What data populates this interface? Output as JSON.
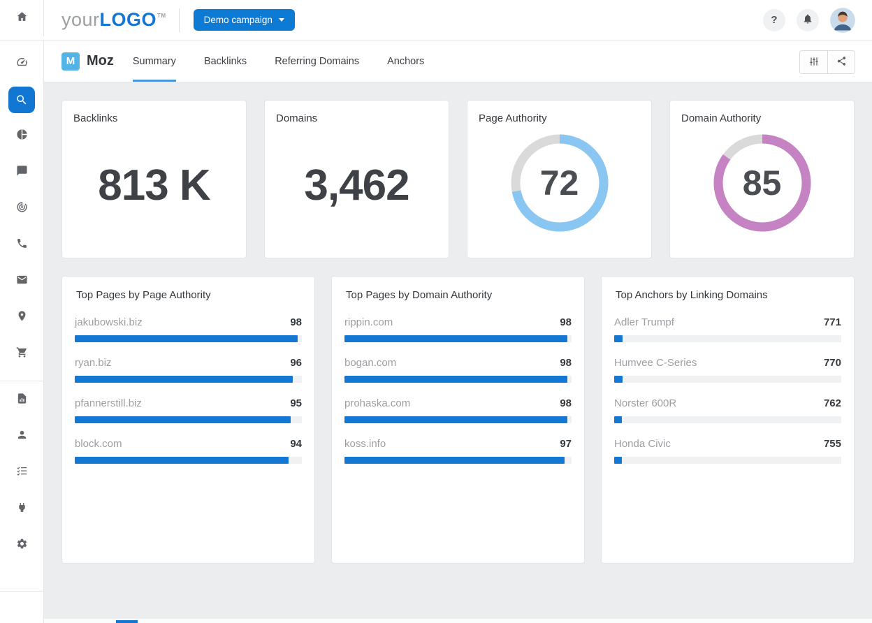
{
  "header": {
    "logo": {
      "part1": "your",
      "part2": "LOGO",
      "tm": "TM"
    },
    "campaign_button": {
      "label": "Demo campaign"
    },
    "help_label": "?"
  },
  "sidebar": {
    "active_icon": "search",
    "icons": [
      "home",
      "dashboard-gauge",
      "search",
      "pie-chart",
      "chat",
      "target",
      "phone",
      "mail",
      "location-pin",
      "shopping-cart",
      "report",
      "user",
      "checklist",
      "plug",
      "settings"
    ]
  },
  "moz": {
    "brand": "Moz",
    "brand_initial": "M",
    "tabs": [
      {
        "label": "Summary",
        "active": true
      },
      {
        "label": "Backlinks",
        "active": false
      },
      {
        "label": "Referring Domains",
        "active": false
      },
      {
        "label": "Anchors",
        "active": false
      }
    ]
  },
  "stats": [
    {
      "title": "Backlinks",
      "value": "813 K",
      "type": "number"
    },
    {
      "title": "Domains",
      "value": "3,462",
      "type": "number"
    },
    {
      "title": "Page Authority",
      "value": 72,
      "max": 100,
      "type": "donut",
      "color": "#8ac6f2"
    },
    {
      "title": "Domain Authority",
      "value": 85,
      "max": 100,
      "type": "donut",
      "color": "#c583c3"
    }
  ],
  "lists": [
    {
      "title": "Top Pages by Page Authority",
      "items": [
        {
          "label": "jakubowski.biz",
          "value": "98",
          "pct": 98
        },
        {
          "label": "ryan.biz",
          "value": "96",
          "pct": 96
        },
        {
          "label": "pfannerstill.biz",
          "value": "95",
          "pct": 95
        },
        {
          "label": "block.com",
          "value": "94",
          "pct": 94
        }
      ]
    },
    {
      "title": "Top Pages by Domain Authority",
      "items": [
        {
          "label": "rippin.com",
          "value": "98",
          "pct": 98
        },
        {
          "label": "bogan.com",
          "value": "98",
          "pct": 98
        },
        {
          "label": "prohaska.com",
          "value": "98",
          "pct": 98
        },
        {
          "label": "koss.info",
          "value": "97",
          "pct": 97
        }
      ]
    },
    {
      "title": "Top Anchors by Linking Domains",
      "items": [
        {
          "label": "Adler Trumpf",
          "value": "771",
          "pct": 3.6
        },
        {
          "label": "Humvee C-Series",
          "value": "770",
          "pct": 3.6
        },
        {
          "label": "Norster 600R",
          "value": "762",
          "pct": 3.5
        },
        {
          "label": "Honda Civic",
          "value": "755",
          "pct": 3.4
        }
      ]
    }
  ],
  "chart_data": [
    {
      "type": "donut-gauge",
      "title": "Page Authority",
      "value": 72,
      "range": [
        0,
        100
      ],
      "color": "#8ac6f2",
      "track_color": "#dadada"
    },
    {
      "type": "donut-gauge",
      "title": "Domain Authority",
      "value": 85,
      "range": [
        0,
        100
      ],
      "color": "#c583c3",
      "track_color": "#dadada"
    },
    {
      "type": "bar",
      "title": "Top Pages by Page Authority",
      "categories": [
        "jakubowski.biz",
        "ryan.biz",
        "pfannerstill.biz",
        "block.com"
      ],
      "values": [
        98,
        96,
        95,
        94
      ],
      "xlim": [
        0,
        100
      ],
      "orientation": "horizontal"
    },
    {
      "type": "bar",
      "title": "Top Pages by Domain Authority",
      "categories": [
        "rippin.com",
        "bogan.com",
        "prohaska.com",
        "koss.info"
      ],
      "values": [
        98,
        98,
        98,
        97
      ],
      "xlim": [
        0,
        100
      ],
      "orientation": "horizontal"
    },
    {
      "type": "bar",
      "title": "Top Anchors by Linking Domains",
      "categories": [
        "Adler Trumpf",
        "Humvee C-Series",
        "Norster 600R",
        "Honda Civic"
      ],
      "values": [
        771,
        770,
        762,
        755
      ],
      "xlim": [
        0,
        21500
      ],
      "orientation": "horizontal"
    }
  ],
  "colors": {
    "primary_blue": "#0d7ad3",
    "bar_blue": "#1377d4",
    "moz_icon_blue": "#55b4e6",
    "donut_blue": "#8ac6f2",
    "donut_pink": "#c583c3",
    "donut_track": "#dadada",
    "content_bg": "#ebedef"
  }
}
